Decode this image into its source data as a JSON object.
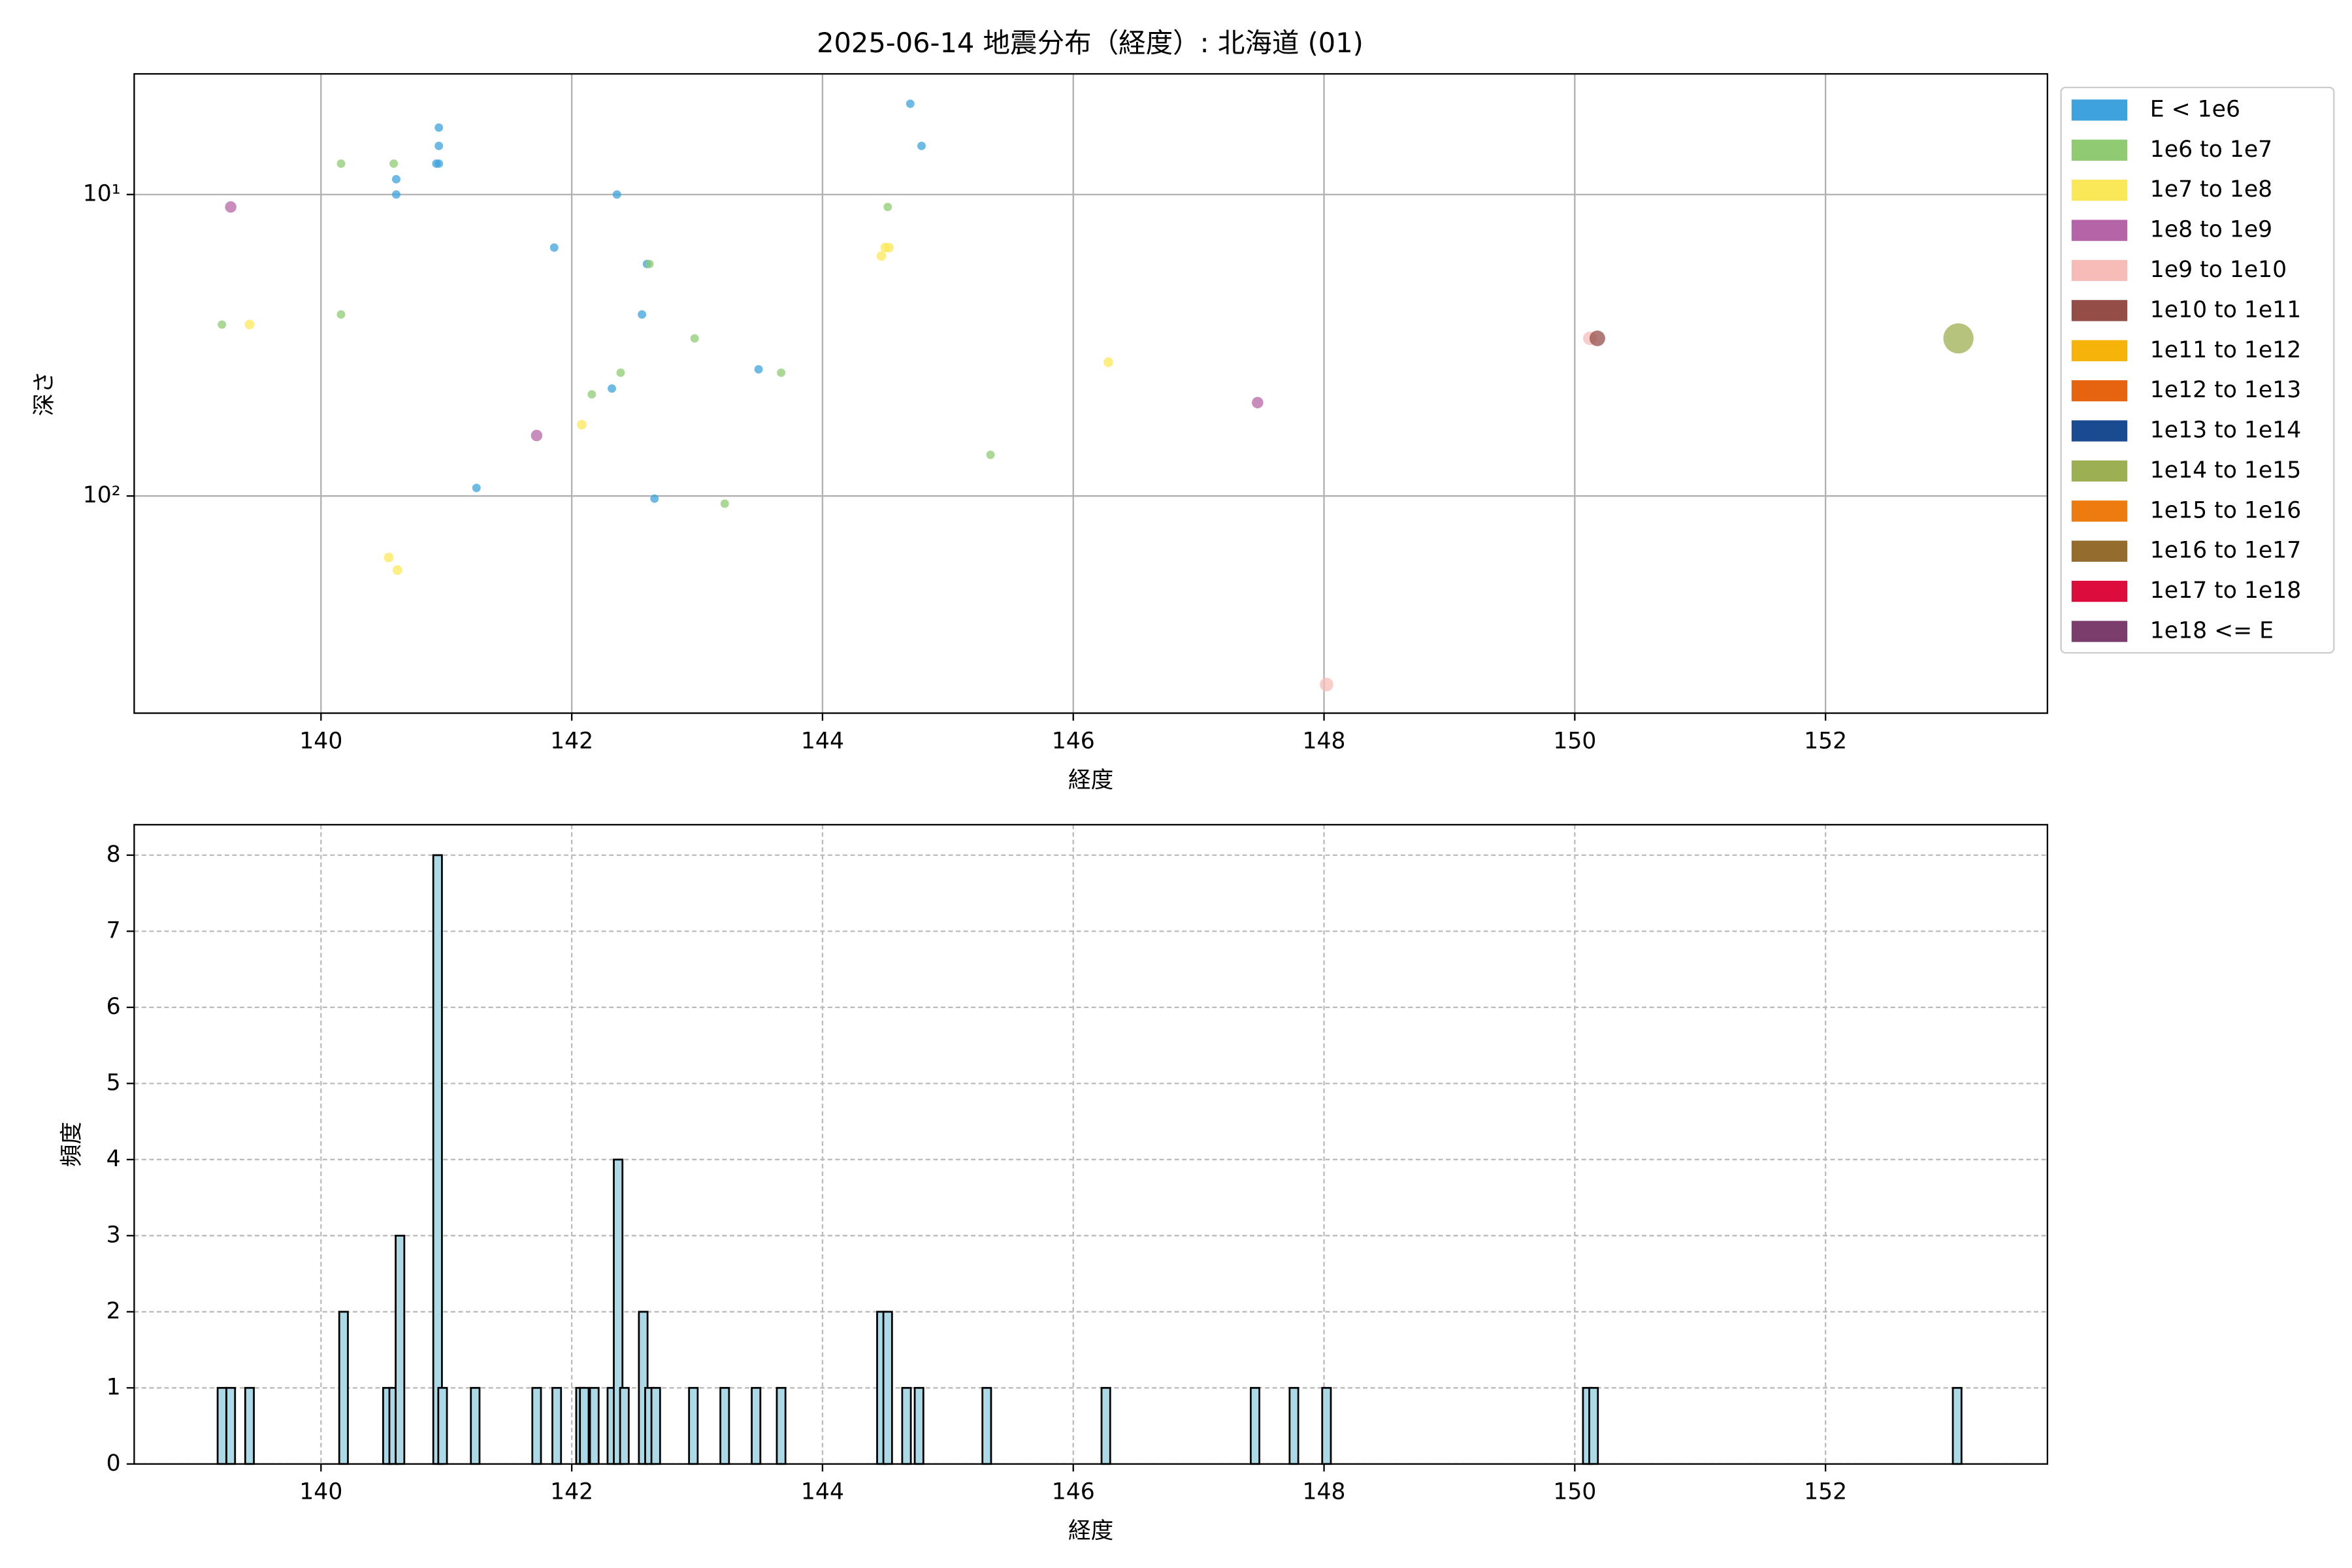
{
  "chart_data": [
    {
      "type": "scatter",
      "title": "2025-06-14 地震分布（経度）: 北海道 (01)",
      "x_label": "経度",
      "y_label": "深さ",
      "xlim": [
        138.51,
        153.77
      ],
      "xticks": [
        140,
        142,
        144,
        146,
        148,
        150,
        152
      ],
      "ylim": [
        525,
        3.98
      ],
      "log_y": true,
      "yticks": [
        {
          "value": 10,
          "label": "10¹"
        },
        {
          "value": 100,
          "label": "10²"
        }
      ],
      "grid": true,
      "legend": "outside-upper-right",
      "series": [
        {
          "name": "E < 1e6",
          "color": "#3ea3dc",
          "marker_radius": 2.8,
          "x": [
            144.7,
            144.79,
            140.94,
            140.94,
            140.94,
            140.92,
            140.6,
            140.6,
            142.36,
            141.86,
            142.6,
            142.56,
            143.49,
            142.32,
            141.24,
            142.66
          ],
          "values": [
            5.0,
            6.9,
            6.0,
            6.9,
            7.9,
            7.9,
            8.9,
            10,
            10,
            15,
            17,
            25,
            38,
            44,
            94,
            102
          ]
        },
        {
          "name": "1e6 to 1e7",
          "color": "#90cb74",
          "marker_radius": 2.8,
          "x": [
            140.16,
            140.58,
            144.52,
            142.62,
            139.21,
            140.16,
            142.98,
            142.39,
            142.16,
            143.67,
            145.34,
            143.22
          ],
          "values": [
            7.9,
            7.9,
            11,
            17,
            27,
            25,
            30,
            39,
            46,
            39,
            73,
            106
          ]
        },
        {
          "name": "1e7 to 1e8",
          "color": "#fbe859",
          "marker_radius": 3.2,
          "x": [
            139.43,
            144.47,
            144.5,
            144.53,
            142.08,
            146.28,
            140.54,
            140.61
          ],
          "values": [
            27,
            16,
            15,
            15,
            58,
            36,
            160,
            176
          ]
        },
        {
          "name": "1e8 to 1e9",
          "color": "#b565a7",
          "marker_radius": 3.8,
          "x": [
            139.28,
            141.72,
            147.47
          ],
          "values": [
            11,
            63,
            49
          ]
        },
        {
          "name": "1e9 to 1e10",
          "color": "#f7bcb8",
          "marker_radius": 4.5,
          "x": [
            148.02,
            150.12
          ],
          "values": [
            422,
            30
          ]
        },
        {
          "name": "1e10 to 1e11",
          "color": "#954d48",
          "marker_radius": 5.2,
          "x": [
            150.18
          ],
          "values": [
            30
          ]
        },
        {
          "name": "1e11 to 1e12",
          "color": "#f6b30a",
          "x": [],
          "values": []
        },
        {
          "name": "1e12 to 1e13",
          "color": "#e66410",
          "x": [],
          "values": []
        },
        {
          "name": "1e13 to 1e14",
          "color": "#1a4a90",
          "x": [],
          "values": []
        },
        {
          "name": "1e14 to 1e15",
          "color": "#9caf52",
          "marker_radius": 10,
          "x": [
            153.06
          ],
          "values": [
            30
          ]
        },
        {
          "name": "1e15 to 1e16",
          "color": "#ee7b10",
          "x": [],
          "values": []
        },
        {
          "name": "1e16 to 1e17",
          "color": "#936c2e",
          "x": [],
          "values": []
        },
        {
          "name": "1e17 to 1e18",
          "color": "#dc0c3c",
          "x": [],
          "values": []
        },
        {
          "name": "1e18 <= E",
          "color": "#7a3d6c",
          "x": [],
          "values": []
        }
      ]
    },
    {
      "type": "histogram-bars",
      "x_label": "経度",
      "y_label": "頻度",
      "xlim": [
        138.51,
        153.77
      ],
      "xticks": [
        140,
        142,
        144,
        146,
        148,
        150,
        152
      ],
      "ylim": [
        0,
        8.4
      ],
      "yticks": [
        0,
        1,
        2,
        3,
        4,
        5,
        6,
        7,
        8
      ],
      "grid": "dashed",
      "color": "#add8e6",
      "edge_color": "#000000",
      "bar_width": 0.069,
      "x": [
        139.21,
        139.28,
        139.43,
        140.18,
        140.53,
        140.58,
        140.63,
        140.93,
        140.97,
        141.23,
        141.72,
        141.88,
        142.07,
        142.1,
        142.18,
        142.32,
        142.37,
        142.42,
        142.57,
        142.62,
        142.67,
        142.97,
        143.22,
        143.47,
        143.67,
        144.47,
        144.52,
        144.67,
        144.77,
        145.31,
        146.26,
        147.45,
        147.76,
        148.02,
        150.1,
        150.15,
        153.05
      ],
      "values": [
        1,
        1,
        1,
        2,
        1,
        1,
        3,
        8,
        1,
        1,
        1,
        1,
        1,
        1,
        1,
        1,
        4,
        1,
        2,
        1,
        1,
        1,
        1,
        1,
        1,
        2,
        2,
        1,
        1,
        1,
        1,
        1,
        1,
        1,
        1,
        1,
        1
      ]
    }
  ]
}
